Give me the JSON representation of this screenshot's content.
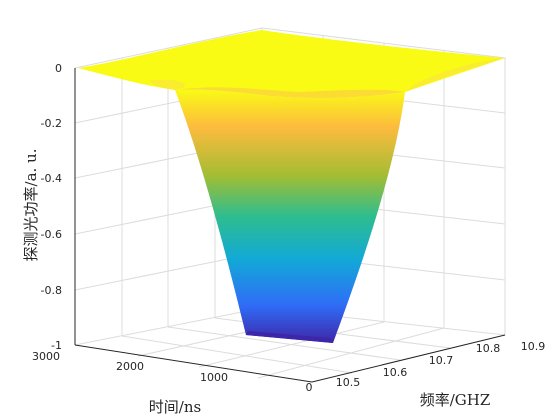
{
  "chart_data": {
    "type": "surface",
    "title": "",
    "xlabel": "频率/GHZ",
    "ylabel": "时间/ns",
    "zlabel": "探测光功率/a. u.",
    "x_range": [
      10.5,
      10.9
    ],
    "y_range": [
      0,
      3000
    ],
    "z_range": [
      -1,
      0
    ],
    "x_ticks": [
      "10.5",
      "10.6",
      "10.7",
      "10.8",
      "10.9"
    ],
    "y_ticks": [
      "0",
      "1000",
      "2000",
      "3000"
    ],
    "z_ticks": [
      "-1",
      "-0.8",
      "-0.6",
      "-0.4",
      "-0.2",
      "0"
    ],
    "grid": true,
    "colormap": [
      "#3e26a8",
      "#2f6df7",
      "#12a9d6",
      "#2ebd8e",
      "#a3bd33",
      "#fcbb3e",
      "#f9fb15"
    ],
    "surface": {
      "description_points": [
        {
          "x": 10.5,
          "y": 3000,
          "z": 0
        },
        {
          "x": 10.9,
          "y": 3000,
          "z": 0
        },
        {
          "x": 10.9,
          "y": 0,
          "z": 0
        },
        {
          "x": 10.5,
          "y": 0,
          "z": 0
        },
        {
          "x": 10.7,
          "y": 1500,
          "z": -1
        }
      ]
    }
  }
}
